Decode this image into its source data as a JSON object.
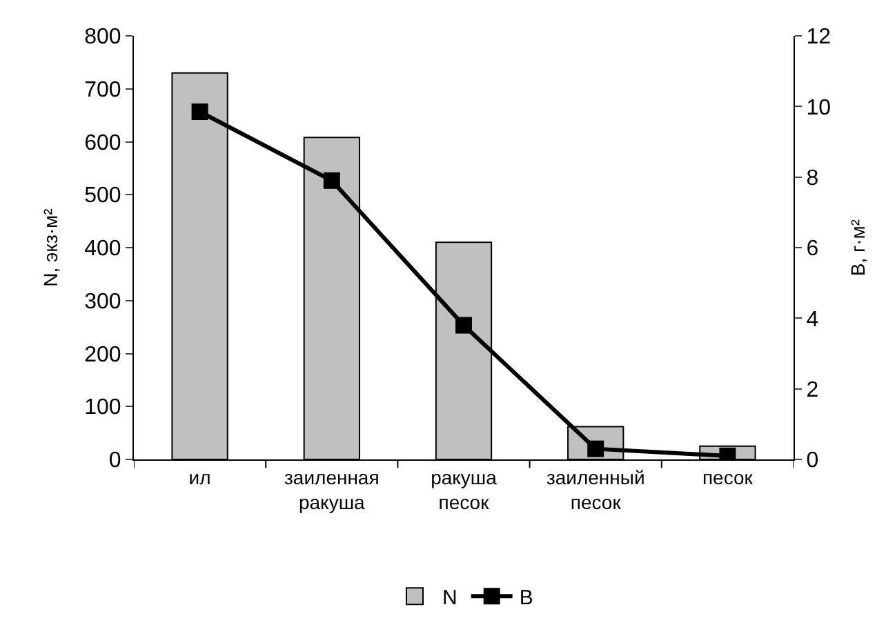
{
  "chart_data": {
    "type": "bar",
    "categories": [
      "ил",
      "заиленная ракуша",
      "ракуша песок",
      "заиленный песок",
      "песок"
    ],
    "series": [
      {
        "name": "N",
        "color": "#c0c0c0",
        "values": [
          730,
          608,
          410,
          62,
          25
        ]
      },
      {
        "name": "B",
        "type": "line",
        "axis": "y2",
        "color": "#000000",
        "marker": "square",
        "values": [
          9.85,
          7.9,
          3.8,
          0.3,
          0.1
        ]
      }
    ],
    "ylabel": "N, экз·м²",
    "y2label": "В, г·м²",
    "ylim": [
      0,
      800
    ],
    "yticks": [
      0,
      100,
      200,
      300,
      400,
      500,
      600,
      700,
      800
    ],
    "y2lim": [
      0,
      12
    ],
    "y2ticks": [
      0,
      2,
      4,
      6,
      8,
      10,
      12
    ],
    "legend": "bottom"
  }
}
